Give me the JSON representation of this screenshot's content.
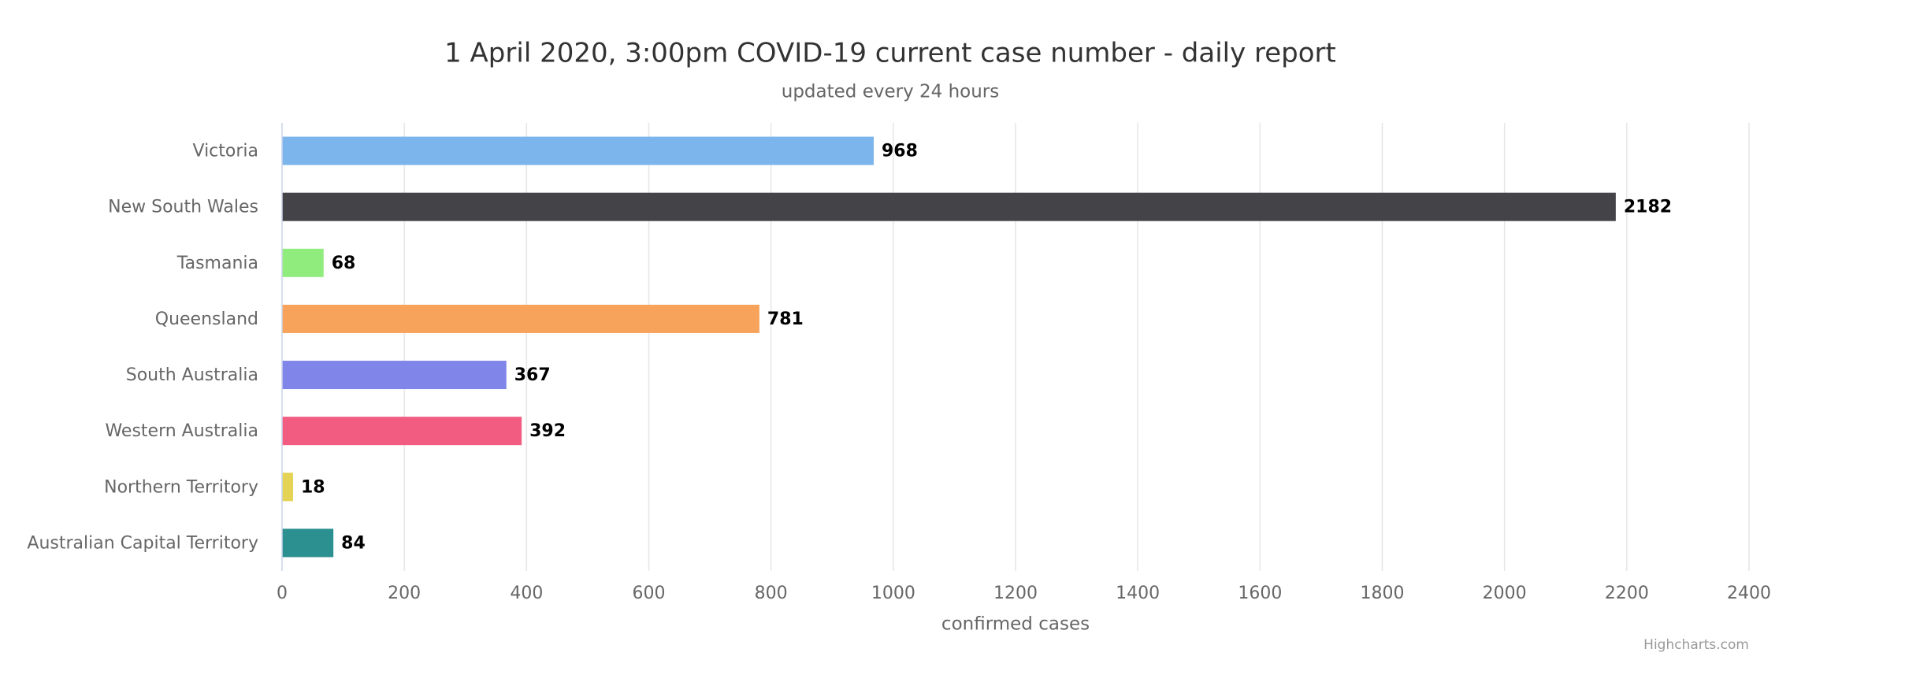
{
  "chart_data": {
    "type": "bar",
    "title": "1 April 2020, 3:00pm COVID-19 current case number - daily report",
    "subtitle": "updated every 24 hours",
    "x_label": "confirmed cases",
    "credits": "Highcharts.com",
    "categories": [
      "Victoria",
      "New South Wales",
      "Tasmania",
      "Queensland",
      "South Australia",
      "Western Australia",
      "Northern Territory",
      "Australian Capital Territory"
    ],
    "values": [
      968,
      2182,
      68,
      781,
      367,
      392,
      18,
      84
    ],
    "colors": [
      "#7cb5ec",
      "#434348",
      "#90ed7d",
      "#f7a35c",
      "#8085e9",
      "#f15c80",
      "#e4d354",
      "#2b908f"
    ],
    "xlim": [
      0,
      2400
    ],
    "xticks": [
      0,
      200,
      400,
      600,
      800,
      1000,
      1200,
      1400,
      1600,
      1800,
      2000,
      2200,
      2400
    ],
    "grid": true
  }
}
